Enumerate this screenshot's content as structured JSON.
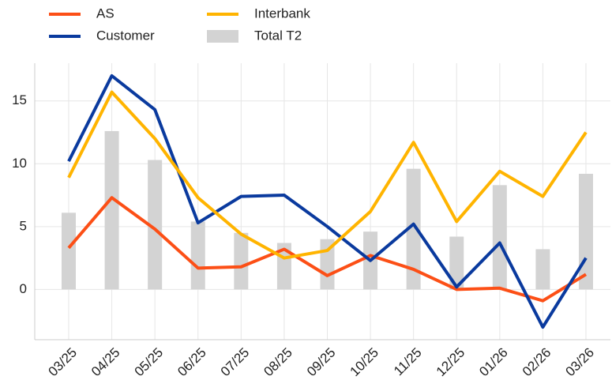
{
  "chart_data": {
    "type": "combo",
    "categories": [
      "03/25",
      "04/25",
      "05/25",
      "06/25",
      "07/25",
      "08/25",
      "09/25",
      "10/25",
      "11/25",
      "12/25",
      "01/26",
      "02/26",
      "03/26"
    ],
    "series": [
      {
        "name": "AS",
        "type": "line",
        "color": "#fc4f16",
        "values": [
          3.3,
          7.3,
          4.8,
          1.7,
          1.8,
          3.2,
          1.1,
          2.7,
          1.6,
          0.0,
          0.1,
          -0.9,
          1.2
        ]
      },
      {
        "name": "Customer",
        "type": "line",
        "color": "#0a3a9e",
        "values": [
          10.2,
          17.0,
          14.3,
          5.3,
          7.4,
          7.5,
          5.0,
          2.3,
          5.2,
          0.2,
          3.7,
          -3.0,
          2.5
        ]
      },
      {
        "name": "Interbank",
        "type": "line",
        "color": "#ffb400",
        "values": [
          8.9,
          15.7,
          12.0,
          7.3,
          4.4,
          2.5,
          3.1,
          6.2,
          11.7,
          5.4,
          9.4,
          7.4,
          12.5
        ]
      },
      {
        "name": "Total T2",
        "type": "bar",
        "color": "#d3d3d3",
        "values": [
          6.1,
          12.6,
          10.3,
          5.4,
          4.5,
          3.7,
          4.0,
          4.6,
          9.6,
          4.2,
          8.3,
          3.2,
          9.2
        ]
      }
    ],
    "ylim": [
      -4,
      18
    ],
    "yticks": [
      0,
      5,
      10,
      15
    ],
    "grid": true
  }
}
